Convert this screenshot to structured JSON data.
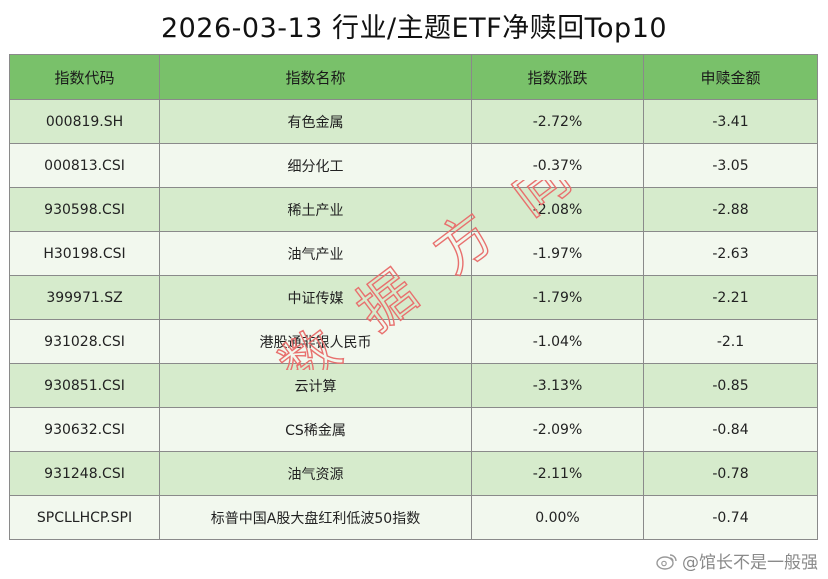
{
  "title": "2026-03-13 行业/主题ETF净赎回Top10",
  "colors": {
    "header_bg": "#79c16a",
    "row_even_bg": "#d6ebcc",
    "row_odd_bg": "#f2f8ee",
    "watermark": "#e8706e"
  },
  "table": {
    "headers": [
      "指数代码",
      "指数名称",
      "指数涨跌",
      "申赎金额"
    ],
    "rows": [
      {
        "code": "000819.SH",
        "name": "有色金属",
        "change": "-2.72%",
        "amount": "-3.41"
      },
      {
        "code": "000813.CSI",
        "name": "细分化工",
        "change": "-0.37%",
        "amount": "-3.05"
      },
      {
        "code": "930598.CSI",
        "name": "稀土产业",
        "change": "-2.08%",
        "amount": "-2.88"
      },
      {
        "code": "H30198.CSI",
        "name": "油气产业",
        "change": "-1.97%",
        "amount": "-2.63"
      },
      {
        "code": "399971.SZ",
        "name": "中证传媒",
        "change": "-1.79%",
        "amount": "-2.21"
      },
      {
        "code": "931028.CSI",
        "name": "港股通非银人民币",
        "change": "-1.04%",
        "amount": "-2.1"
      },
      {
        "code": "930851.CSI",
        "name": "云计算",
        "change": "-3.13%",
        "amount": "-0.85"
      },
      {
        "code": "930632.CSI",
        "name": "CS稀金属",
        "change": "-2.09%",
        "amount": "-0.84"
      },
      {
        "code": "931248.CSI",
        "name": "油气资源",
        "change": "-2.11%",
        "amount": "-0.78"
      },
      {
        "code": "SPCLLHCP.SPI",
        "name": "标普中国A股大盘红利低波50指数",
        "change": "0.00%",
        "amount": "-0.74"
      }
    ]
  },
  "watermark_text": [
    "数",
    "据",
    "方",
    "向"
  ],
  "weibo_credit": "@馆长不是一般强",
  "weibo_icon": "weibo-icon"
}
